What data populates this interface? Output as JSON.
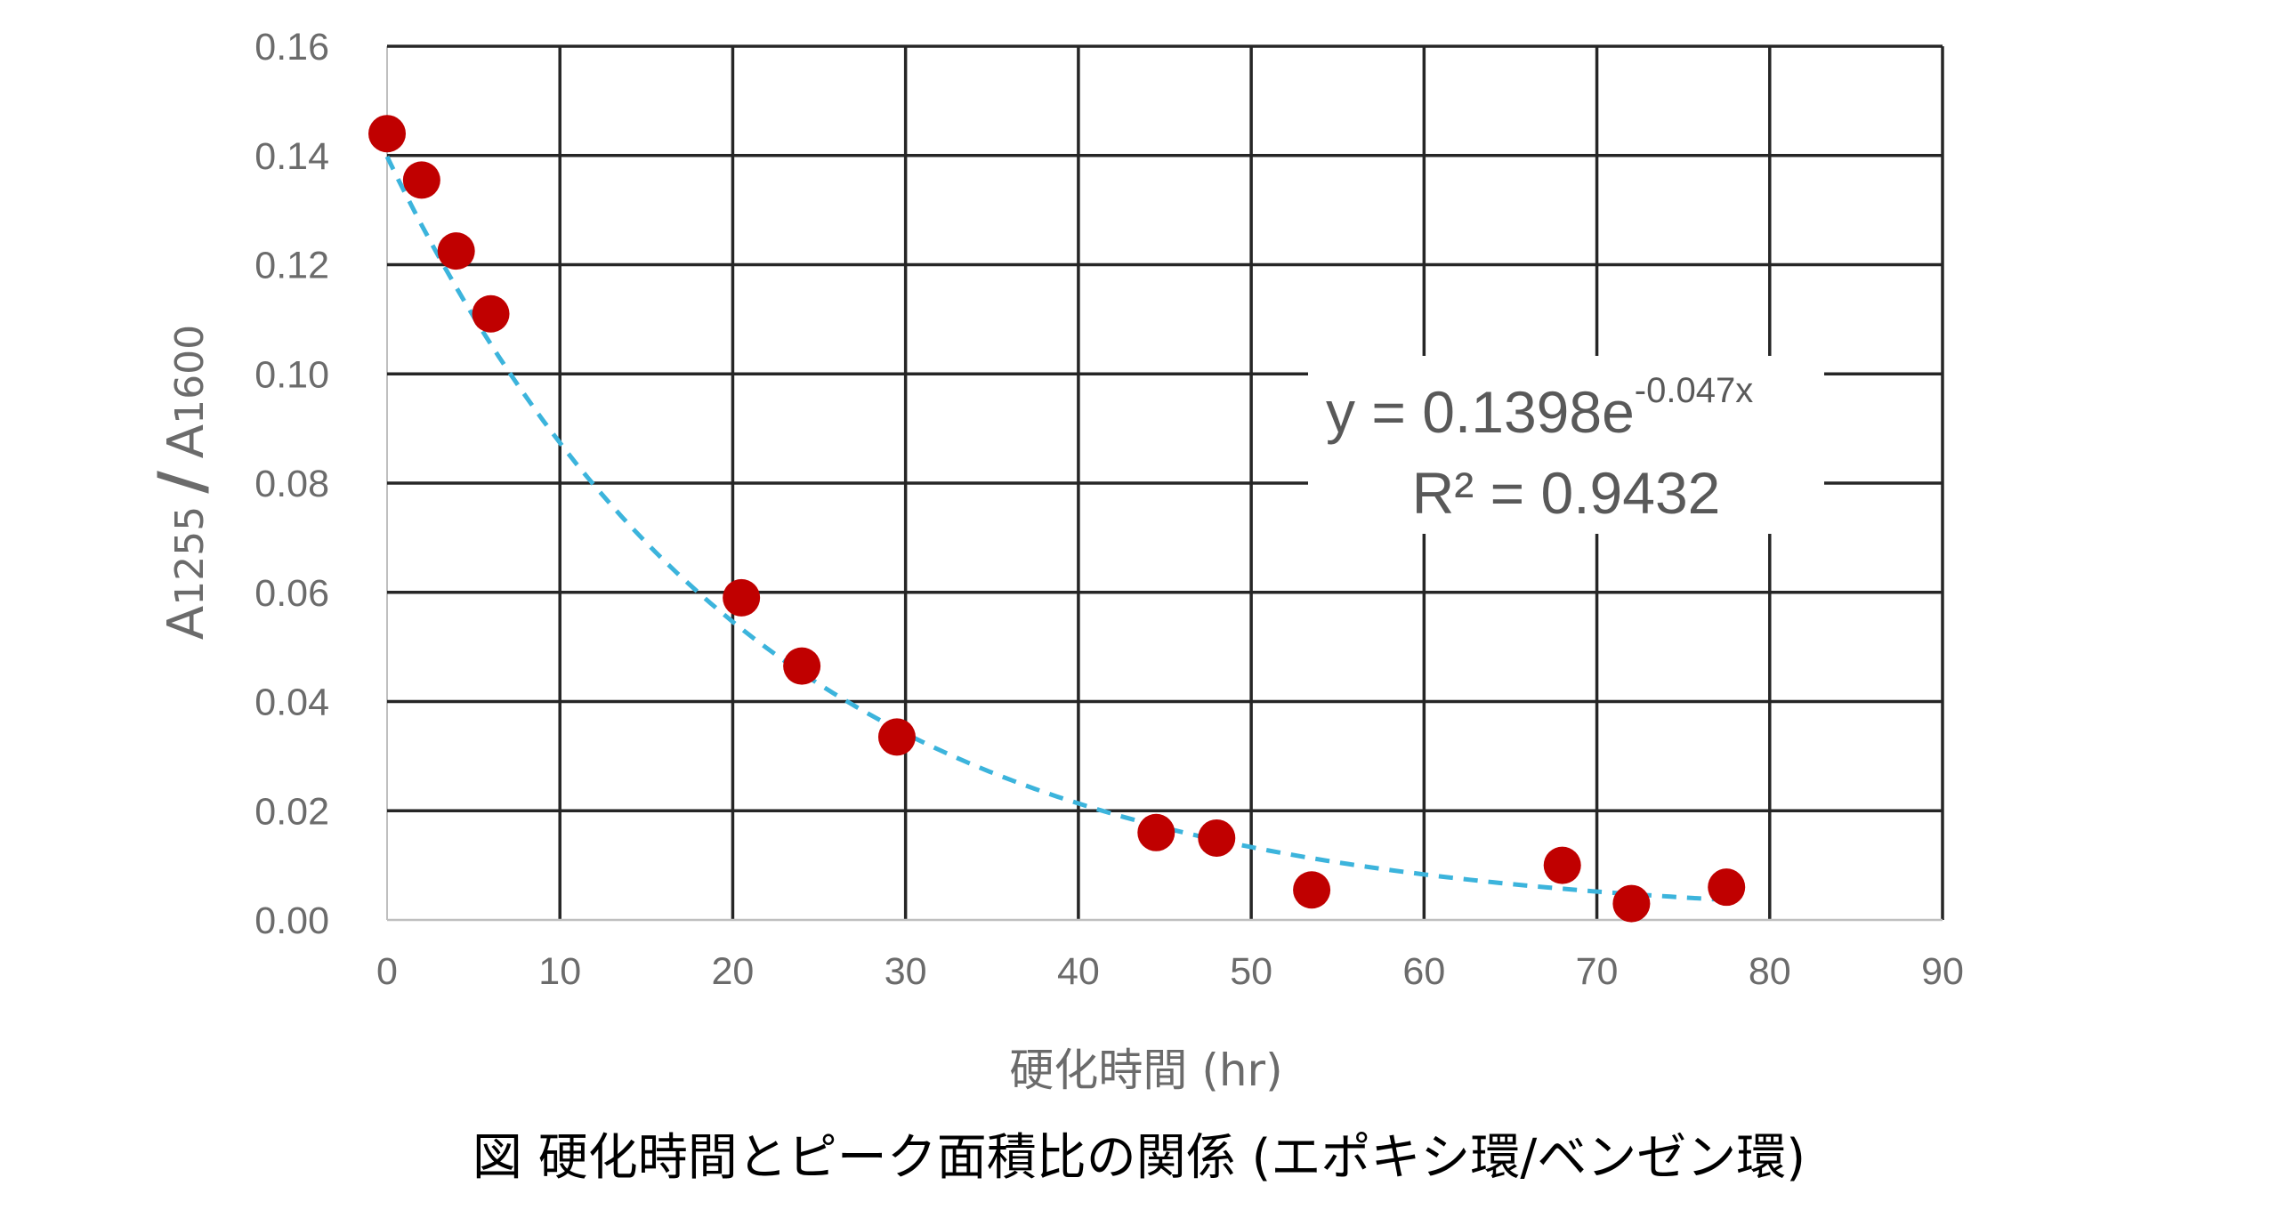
{
  "chart_data": {
    "type": "scatter",
    "xlabel": "硬化時間 (hr)",
    "ylabel": {
      "a1": "A",
      "sub1": "1255",
      "slash": "/",
      "a2": "A",
      "sub2": "1600"
    },
    "caption": "図  硬化時間とピーク面積比の関係  (エポキシ環/ベンゼン環)",
    "xlim": [
      0,
      90
    ],
    "ylim": [
      0,
      0.16
    ],
    "x_ticks": [
      "0",
      "10",
      "20",
      "30",
      "40",
      "50",
      "60",
      "70",
      "80",
      "90"
    ],
    "y_ticks": [
      "0.00",
      "0.02",
      "0.04",
      "0.06",
      "0.08",
      "0.10",
      "0.12",
      "0.14",
      "0.16"
    ],
    "grid": true,
    "points": [
      {
        "x": 0,
        "y": 0.144
      },
      {
        "x": 2,
        "y": 0.1355
      },
      {
        "x": 4,
        "y": 0.1225
      },
      {
        "x": 6,
        "y": 0.111
      },
      {
        "x": 20.5,
        "y": 0.059
      },
      {
        "x": 24,
        "y": 0.0465
      },
      {
        "x": 29.5,
        "y": 0.0335
      },
      {
        "x": 44.5,
        "y": 0.016
      },
      {
        "x": 48,
        "y": 0.015
      },
      {
        "x": 53.5,
        "y": 0.0055
      },
      {
        "x": 68,
        "y": 0.01
      },
      {
        "x": 72,
        "y": 0.003
      },
      {
        "x": 77.5,
        "y": 0.006
      }
    ],
    "trendline": {
      "type": "exponential",
      "a": 0.1398,
      "b": -0.047,
      "x_range": [
        0,
        77.5
      ],
      "color": "#3cb4dc"
    },
    "equation": {
      "main": "y = 0.1398e",
      "exponent": "-0.047x",
      "r2": "R² = 0.9432"
    },
    "point_color": "#c00000"
  }
}
